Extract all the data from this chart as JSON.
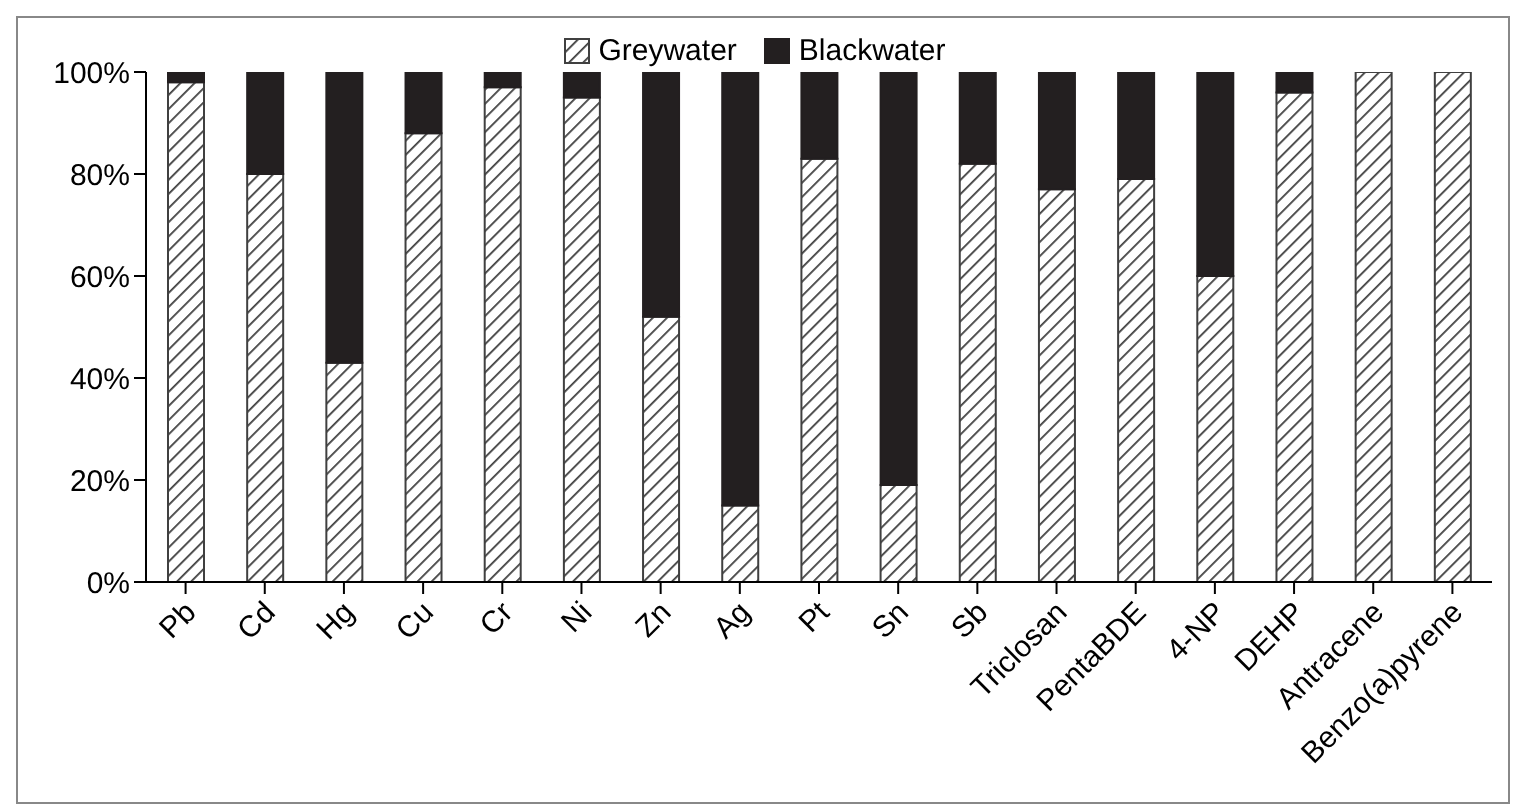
{
  "chart_data": {
    "type": "bar",
    "stacked": true,
    "categories": [
      "Pb",
      "Cd",
      "Hg",
      "Cu",
      "Cr",
      "Ni",
      "Zn",
      "Ag",
      "Pt",
      "Sn",
      "Sb",
      "Triclosan",
      "PentaBDE",
      "4-NP",
      "DEHP",
      "Antracene",
      "Benzo(a)pyrene"
    ],
    "series": [
      {
        "name": "Greywater",
        "color": "#404040",
        "values": [
          98,
          80,
          43,
          88,
          97,
          95,
          52,
          15,
          83,
          19,
          82,
          77,
          79,
          60,
          96,
          100,
          100
        ]
      },
      {
        "name": "Blackwater",
        "color": "#231f20",
        "values": [
          2,
          20,
          57,
          12,
          3,
          5,
          48,
          85,
          17,
          81,
          18,
          23,
          21,
          40,
          4,
          0,
          0
        ]
      }
    ],
    "ylim": [
      0,
      100
    ],
    "yticks": [
      {
        "value": 0,
        "label": "0%"
      },
      {
        "value": 20,
        "label": "20%"
      },
      {
        "value": 40,
        "label": "40%"
      },
      {
        "value": 60,
        "label": "60%"
      },
      {
        "value": 80,
        "label": "80%"
      },
      {
        "value": 100,
        "label": "100%"
      }
    ],
    "grid": false,
    "legend": "top"
  }
}
